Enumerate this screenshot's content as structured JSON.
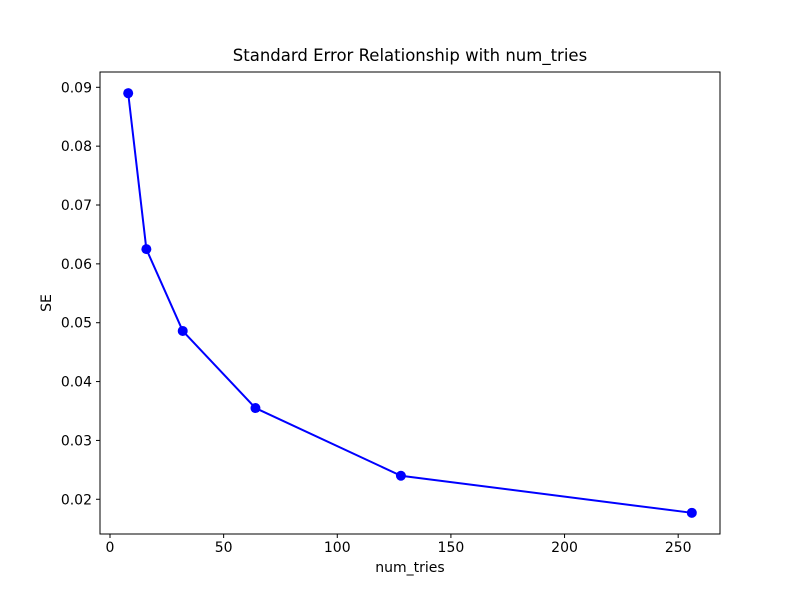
{
  "chart_data": {
    "type": "line",
    "title": "Standard Error Relationship with num_tries",
    "xlabel": "num_tries",
    "ylabel": "SE",
    "x": [
      8,
      16,
      32,
      64,
      128,
      256
    ],
    "y": [
      0.089,
      0.0625,
      0.0486,
      0.0355,
      0.024,
      0.0177
    ],
    "xtick_values": [
      0,
      50,
      100,
      150,
      200,
      250
    ],
    "xtick_labels": [
      "0",
      "50",
      "100",
      "150",
      "200",
      "250"
    ],
    "ytick_values": [
      0.02,
      0.03,
      0.04,
      0.05,
      0.06,
      0.07,
      0.08,
      0.09
    ],
    "ytick_labels": [
      "0.02",
      "0.03",
      "0.04",
      "0.05",
      "0.06",
      "0.07",
      "0.08",
      "0.09"
    ],
    "xlim": [
      -4.4,
      268.4
    ],
    "ylim": [
      0.0141,
      0.0926
    ],
    "grid": false,
    "legend_position": "none",
    "line_color": "#0000ff",
    "marker": "circle",
    "marker_color": "#0000ff",
    "axes_color": "#000000",
    "text_color": "#000000",
    "background_color": "#ffffff"
  }
}
